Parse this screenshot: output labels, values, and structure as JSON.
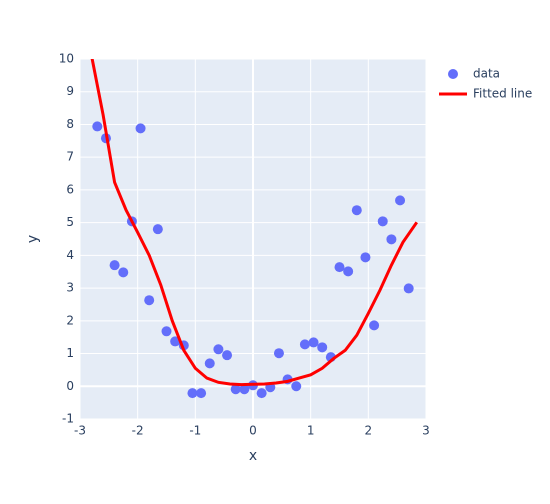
{
  "chart_data": {
    "type": "scatter",
    "x_label": "x",
    "y_label": "y",
    "xlim": [
      -3,
      3
    ],
    "ylim": [
      -1,
      10
    ],
    "xticks": [
      -3,
      -2,
      -1,
      0,
      1,
      2,
      3
    ],
    "yticks": [
      -1,
      0,
      1,
      2,
      3,
      4,
      5,
      6,
      7,
      8,
      9,
      10
    ],
    "grid": true,
    "legend": "right",
    "series": [
      {
        "name": "data",
        "mode": "markers",
        "color": "#636efa",
        "x": [
          -2.7,
          -2.55,
          -2.4,
          -2.25,
          -2.1,
          -1.95,
          -1.8,
          -1.65,
          -1.5,
          -1.35,
          -1.2,
          -1.05,
          -0.9,
          -0.75,
          -0.6,
          -0.45,
          -0.3,
          -0.15,
          0,
          0.15,
          0.3,
          0.45,
          0.6,
          0.75,
          0.9,
          1.05,
          1.2,
          1.35,
          1.5,
          1.65,
          1.8,
          1.95,
          2.1,
          2.25,
          2.4,
          2.55,
          2.7
        ],
        "values": [
          7.94,
          7.58,
          3.7,
          3.48,
          5.04,
          7.88,
          2.63,
          4.8,
          1.68,
          1.37,
          1.25,
          -0.21,
          -0.21,
          0.7,
          1.13,
          0.95,
          -0.09,
          -0.09,
          0.03,
          -0.21,
          -0.03,
          1.01,
          0.21,
          0.0,
          1.28,
          1.34,
          1.19,
          0.89,
          3.64,
          3.51,
          5.38,
          3.94,
          1.86,
          5.04,
          4.49,
          5.68,
          2.99
        ]
      },
      {
        "name": "Fitted line",
        "mode": "lines",
        "color": "#ff0000",
        "x": [
          -2.8,
          -2.6,
          -2.4,
          -2.2,
          -2.0,
          -1.8,
          -1.6,
          -1.4,
          -1.2,
          -1.0,
          -0.8,
          -0.6,
          -0.4,
          -0.2,
          0,
          0.2,
          0.4,
          0.6,
          0.8,
          1.0,
          1.2,
          1.4,
          1.6,
          1.8,
          2.0,
          2.2,
          2.4,
          2.6,
          2.84
        ],
        "values": [
          10.1,
          8.3,
          6.23,
          5.38,
          4.7,
          4.0,
          3.1,
          2.0,
          1.1,
          0.55,
          0.25,
          0.12,
          0.07,
          0.05,
          0.06,
          0.07,
          0.1,
          0.15,
          0.25,
          0.35,
          0.55,
          0.85,
          1.1,
          1.56,
          2.23,
          2.93,
          3.7,
          4.4,
          5.01
        ]
      }
    ]
  }
}
